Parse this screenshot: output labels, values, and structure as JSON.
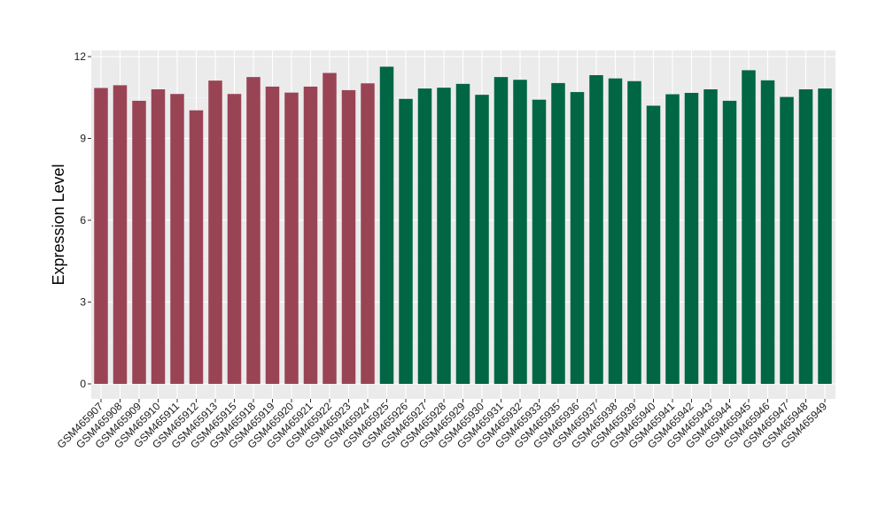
{
  "chart_data": {
    "type": "bar",
    "title": "",
    "xlabel": "",
    "ylabel": "Expression Level",
    "ylim": [
      0,
      12
    ],
    "yticks": [
      0,
      3,
      6,
      9,
      12
    ],
    "grid": true,
    "background": "#EBEBEB",
    "categories": [
      "GSM465907",
      "GSM465908",
      "GSM465909",
      "GSM465910",
      "GSM465911",
      "GSM465912",
      "GSM465913",
      "GSM465915",
      "GSM465918",
      "GSM465919",
      "GSM465920",
      "GSM465921",
      "GSM465922",
      "GSM465923",
      "GSM465924",
      "GSM465925",
      "GSM465926",
      "GSM465927",
      "GSM465928",
      "GSM465929",
      "GSM465930",
      "GSM465931",
      "GSM465932",
      "GSM465933",
      "GSM465935",
      "GSM465936",
      "GSM465937",
      "GSM465938",
      "GSM465939",
      "GSM465940",
      "GSM465941",
      "GSM465942",
      "GSM465943",
      "GSM465944",
      "GSM465945",
      "GSM465946",
      "GSM465947",
      "GSM465948",
      "GSM465949"
    ],
    "values": [
      10.85,
      10.95,
      10.38,
      10.8,
      10.63,
      10.03,
      11.12,
      10.63,
      11.25,
      10.9,
      10.68,
      10.9,
      11.4,
      10.77,
      11.02,
      11.63,
      10.45,
      10.83,
      10.86,
      11.0,
      10.6,
      11.25,
      11.15,
      10.42,
      11.03,
      10.7,
      11.32,
      11.2,
      11.1,
      10.2,
      10.62,
      10.67,
      10.8,
      10.38,
      11.5,
      11.13,
      10.52,
      10.8,
      10.83
    ],
    "group_sizes": [
      15,
      24
    ],
    "colors": [
      "#994455",
      "#006644"
    ]
  }
}
